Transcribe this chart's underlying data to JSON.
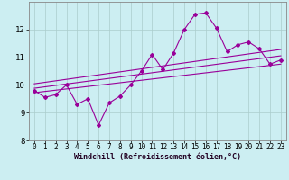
{
  "xlabel": "Windchill (Refroidissement éolien,°C)",
  "bg_color": "#cceef2",
  "line_color": "#990099",
  "grid_color": "#aacccc",
  "xlim": [
    -0.5,
    23.5
  ],
  "ylim": [
    8.0,
    13.0
  ],
  "yticks": [
    8,
    9,
    10,
    11,
    12
  ],
  "xticks": [
    0,
    1,
    2,
    3,
    4,
    5,
    6,
    7,
    8,
    9,
    10,
    11,
    12,
    13,
    14,
    15,
    16,
    17,
    18,
    19,
    20,
    21,
    22,
    23
  ],
  "main_line_x": [
    0,
    1,
    2,
    3,
    4,
    5,
    6,
    7,
    8,
    9,
    10,
    11,
    12,
    13,
    14,
    15,
    16,
    17,
    18,
    19,
    20,
    21,
    22,
    23
  ],
  "main_line_y": [
    9.8,
    9.55,
    9.65,
    10.0,
    9.3,
    9.5,
    8.55,
    9.35,
    9.6,
    10.0,
    10.5,
    11.1,
    10.55,
    11.15,
    12.0,
    12.55,
    12.6,
    12.05,
    11.2,
    11.45,
    11.55,
    11.3,
    10.75,
    10.9
  ],
  "trend1_x": [
    0,
    23
  ],
  "trend1_y": [
    9.72,
    10.75
  ],
  "trend2_x": [
    0,
    23
  ],
  "trend2_y": [
    9.88,
    11.05
  ],
  "trend3_x": [
    0,
    23
  ],
  "trend3_y": [
    10.04,
    11.28
  ]
}
